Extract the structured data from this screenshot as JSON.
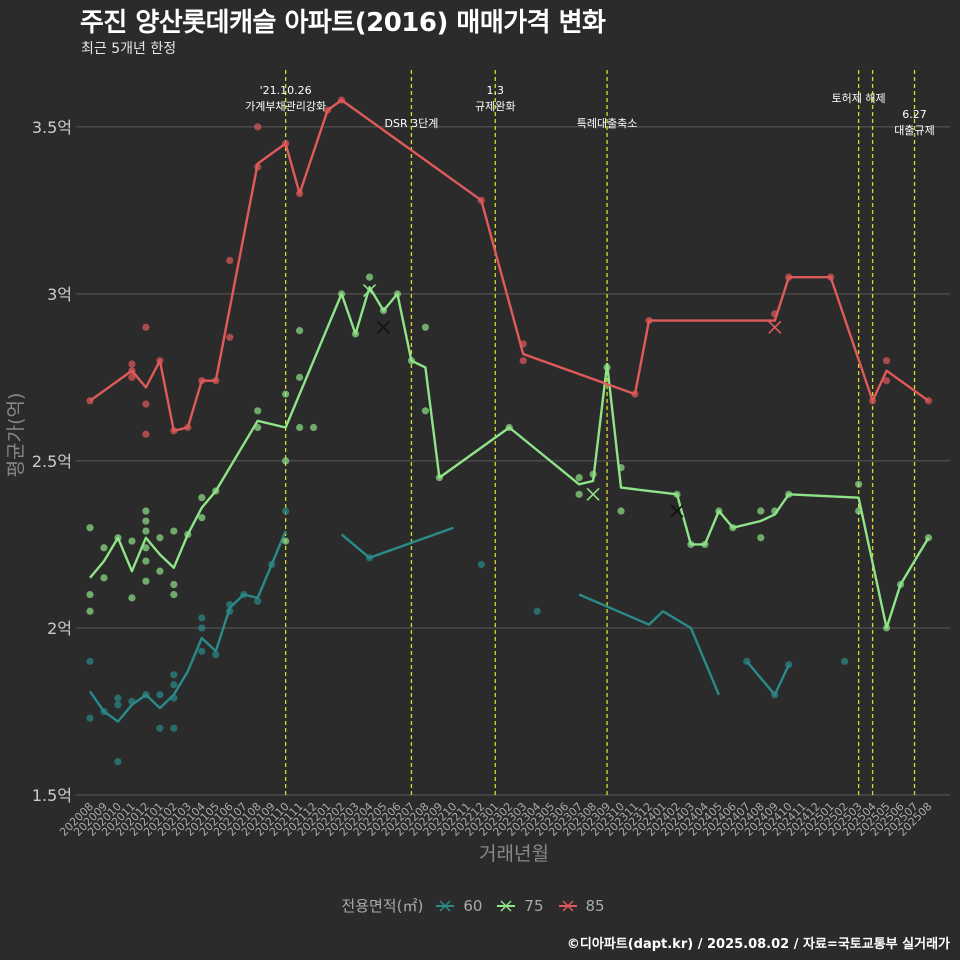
{
  "header": {
    "title": "주진 양산롯데캐슬 아파트(2016) 매매가격 변화",
    "subtitle": "최근 5개년 한정"
  },
  "footer": {
    "source": "©디아파트(dapt.kr) / 2025.08.02 / 자료=국토교통부 실거래가"
  },
  "legend": {
    "title": "전용면적(㎡)",
    "items": [
      {
        "label": "60",
        "color": "#2a8a8a"
      },
      {
        "label": "75",
        "color": "#8fe388"
      },
      {
        "label": "85",
        "color": "#e05a5a"
      }
    ]
  },
  "colors": {
    "background": "#2b2b2b",
    "grid": "#5a5a5a",
    "event_line": "#d4dc2a"
  },
  "chart_data": {
    "type": "line",
    "title": "주진 양산롯데캐슬 아파트(2016) 매매가격 변화",
    "subtitle": "최근 5개년 한정",
    "xlabel": "거래년월",
    "ylabel": "평균가(억)",
    "ylim": [
      1.5,
      3.7
    ],
    "y_ticks": [
      1.5,
      2,
      2.5,
      3,
      3.5
    ],
    "y_tick_labels": [
      "1.5억",
      "2억",
      "2.5억",
      "3억",
      "3.5억"
    ],
    "grid": true,
    "legend_position": "bottom",
    "categories": [
      "202008",
      "202009",
      "202010",
      "202011",
      "202012",
      "202101",
      "202102",
      "202103",
      "202104",
      "202105",
      "202106",
      "202107",
      "202108",
      "202109",
      "202110",
      "202111",
      "202112",
      "202201",
      "202202",
      "202203",
      "202204",
      "202205",
      "202206",
      "202207",
      "202208",
      "202209",
      "202210",
      "202211",
      "202212",
      "202301",
      "202302",
      "202303",
      "202304",
      "202305",
      "202306",
      "202307",
      "202308",
      "202309",
      "202310",
      "202311",
      "202312",
      "202401",
      "202402",
      "202403",
      "202404",
      "202405",
      "202406",
      "202407",
      "202408",
      "202409",
      "202410",
      "202411",
      "202412",
      "202501",
      "202502",
      "202503",
      "202504",
      "202505",
      "202506",
      "202507",
      "202508"
    ],
    "events": [
      {
        "x": 14.0,
        "label": "'21.10.26\n가계부채관리강화",
        "row": 0
      },
      {
        "x": 23.0,
        "label": "DSR 3단계",
        "row": 2
      },
      {
        "x": 29.0,
        "label": "1.3\n규제완화",
        "row": 0
      },
      {
        "x": 37.0,
        "label": "특례대출축소",
        "row": 2
      },
      {
        "x": 55.0,
        "label": "토허제 해제",
        "row": 1
      },
      {
        "x": 56.0,
        "label": "",
        "row": 1
      },
      {
        "x": 59.0,
        "label": "6.27\n대출규제",
        "row": 3
      }
    ],
    "series": [
      {
        "name": "60",
        "color": "#2a8a8a",
        "line": [
          [
            [
              0,
              1.81
            ],
            [
              1,
              1.75
            ],
            [
              2,
              1.72
            ],
            [
              3,
              1.77
            ],
            [
              4,
              1.8
            ],
            [
              5,
              1.76
            ],
            [
              6,
              1.8
            ],
            [
              7,
              1.87
            ],
            [
              8,
              1.97
            ],
            [
              9,
              1.93
            ],
            [
              10,
              2.06
            ],
            [
              11,
              2.1
            ],
            [
              12,
              2.09
            ],
            [
              13,
              2.19
            ],
            [
              14,
              2.29
            ]
          ],
          [
            [
              18,
              2.28
            ],
            [
              20,
              2.21
            ],
            [
              26,
              2.3
            ]
          ],
          [
            [
              35,
              2.1
            ],
            [
              40,
              2.01
            ],
            [
              41,
              2.05
            ],
            [
              43,
              2.0
            ],
            [
              45,
              1.8
            ]
          ],
          [
            [
              47,
              1.9
            ],
            [
              49,
              1.8
            ],
            [
              50,
              1.89
            ]
          ],
          [
            [
              54,
              1.9
            ]
          ]
        ],
        "points": [
          [
            0,
            1.9
          ],
          [
            0,
            1.73
          ],
          [
            1,
            1.75
          ],
          [
            2,
            1.79
          ],
          [
            2,
            1.77
          ],
          [
            2,
            1.6
          ],
          [
            3,
            1.78
          ],
          [
            4,
            1.8
          ],
          [
            5,
            1.7
          ],
          [
            5,
            1.8
          ],
          [
            6,
            1.7
          ],
          [
            6,
            1.79
          ],
          [
            6,
            1.83
          ],
          [
            6,
            1.86
          ],
          [
            8,
            1.93
          ],
          [
            8,
            2.0
          ],
          [
            8,
            2.03
          ],
          [
            9,
            1.92
          ],
          [
            10,
            2.05
          ],
          [
            10,
            2.07
          ],
          [
            11,
            2.1
          ],
          [
            12,
            2.08
          ],
          [
            13,
            2.19
          ],
          [
            14,
            2.35
          ],
          [
            20,
            2.21
          ],
          [
            28,
            2.19
          ],
          [
            32,
            2.05
          ],
          [
            47,
            1.9
          ],
          [
            49,
            1.8
          ],
          [
            50,
            1.89
          ],
          [
            54,
            1.9
          ]
        ],
        "markers": []
      },
      {
        "name": "75",
        "color": "#8fe388",
        "line": [
          [
            [
              0,
              2.15
            ],
            [
              1,
              2.2
            ],
            [
              2,
              2.27
            ],
            [
              3,
              2.17
            ],
            [
              4,
              2.27
            ],
            [
              5,
              2.22
            ],
            [
              6,
              2.18
            ],
            [
              7,
              2.28
            ],
            [
              8,
              2.36
            ],
            [
              9,
              2.41
            ],
            [
              12,
              2.62
            ],
            [
              14,
              2.6
            ],
            [
              18,
              3.0
            ],
            [
              19,
              2.88
            ],
            [
              20,
              3.02
            ],
            [
              21,
              2.95
            ],
            [
              22,
              3.0
            ],
            [
              23,
              2.8
            ],
            [
              24,
              2.78
            ],
            [
              25,
              2.45
            ],
            [
              30,
              2.6
            ],
            [
              35,
              2.43
            ],
            [
              36,
              2.44
            ],
            [
              37,
              2.79
            ],
            [
              38,
              2.42
            ],
            [
              42,
              2.4
            ],
            [
              43,
              2.25
            ],
            [
              44,
              2.25
            ],
            [
              45,
              2.35
            ],
            [
              46,
              2.3
            ],
            [
              48,
              2.32
            ],
            [
              49,
              2.34
            ],
            [
              50,
              2.4
            ],
            [
              55,
              2.39
            ],
            [
              57,
              2.0
            ],
            [
              58,
              2.13
            ],
            [
              60,
              2.27
            ]
          ]
        ],
        "points": [
          [
            0,
            2.3
          ],
          [
            0,
            2.1
          ],
          [
            0,
            2.05
          ],
          [
            1,
            2.24
          ],
          [
            1,
            2.15
          ],
          [
            2,
            2.27
          ],
          [
            3,
            2.26
          ],
          [
            3,
            2.09
          ],
          [
            4,
            2.35
          ],
          [
            4,
            2.32
          ],
          [
            4,
            2.29
          ],
          [
            4,
            2.24
          ],
          [
            4,
            2.2
          ],
          [
            4,
            2.14
          ],
          [
            5,
            2.27
          ],
          [
            5,
            2.17
          ],
          [
            6,
            2.29
          ],
          [
            6,
            2.13
          ],
          [
            6,
            2.1
          ],
          [
            7,
            2.28
          ],
          [
            8,
            2.39
          ],
          [
            8,
            2.33
          ],
          [
            9,
            2.41
          ],
          [
            12,
            2.65
          ],
          [
            12,
            2.6
          ],
          [
            14,
            2.7
          ],
          [
            14,
            2.5
          ],
          [
            14,
            2.26
          ],
          [
            15,
            2.89
          ],
          [
            15,
            2.75
          ],
          [
            15,
            2.6
          ],
          [
            16,
            2.6
          ],
          [
            18,
            3.0
          ],
          [
            19,
            2.88
          ],
          [
            20,
            3.05
          ],
          [
            21,
            2.95
          ],
          [
            22,
            3.0
          ],
          [
            23,
            2.8
          ],
          [
            24,
            2.9
          ],
          [
            24,
            2.65
          ],
          [
            25,
            2.45
          ],
          [
            30,
            2.6
          ],
          [
            35,
            2.45
          ],
          [
            35,
            2.4
          ],
          [
            36,
            2.46
          ],
          [
            37,
            2.78
          ],
          [
            38,
            2.48
          ],
          [
            38,
            2.35
          ],
          [
            42,
            2.4
          ],
          [
            43,
            2.25
          ],
          [
            44,
            2.25
          ],
          [
            45,
            2.35
          ],
          [
            46,
            2.3
          ],
          [
            48,
            2.35
          ],
          [
            48,
            2.27
          ],
          [
            49,
            2.35
          ],
          [
            50,
            2.4
          ],
          [
            55,
            2.43
          ],
          [
            55,
            2.35
          ],
          [
            57,
            2.0
          ],
          [
            58,
            2.13
          ],
          [
            60,
            2.27
          ]
        ],
        "markers": [
          [
            20,
            3.01
          ],
          [
            36,
            2.4
          ],
          [
            42,
            2.35
          ],
          [
            21,
            2.9
          ]
        ]
      },
      {
        "name": "85",
        "color": "#e05a5a",
        "line": [
          [
            [
              0,
              2.68
            ],
            [
              3,
              2.77
            ],
            [
              4,
              2.72
            ],
            [
              5,
              2.8
            ],
            [
              6,
              2.59
            ],
            [
              7,
              2.6
            ],
            [
              8,
              2.74
            ],
            [
              9,
              2.74
            ],
            [
              12,
              3.39
            ],
            [
              14,
              3.45
            ],
            [
              15,
              3.3
            ],
            [
              17,
              3.55
            ],
            [
              18,
              3.58
            ],
            [
              28,
              3.28
            ],
            [
              31,
              2.82
            ],
            [
              39,
              2.7
            ],
            [
              40,
              2.92
            ],
            [
              49,
              2.92
            ],
            [
              50,
              3.05
            ],
            [
              53,
              3.05
            ],
            [
              56,
              2.68
            ],
            [
              57,
              2.77
            ],
            [
              60,
              2.68
            ]
          ]
        ],
        "points": [
          [
            0,
            2.68
          ],
          [
            3,
            2.79
          ],
          [
            3,
            2.77
          ],
          [
            3,
            2.75
          ],
          [
            4,
            2.9
          ],
          [
            4,
            2.67
          ],
          [
            4,
            2.58
          ],
          [
            5,
            2.8
          ],
          [
            6,
            2.59
          ],
          [
            7,
            2.6
          ],
          [
            8,
            2.74
          ],
          [
            9,
            2.74
          ],
          [
            10,
            3.1
          ],
          [
            10,
            2.87
          ],
          [
            12,
            3.5
          ],
          [
            12,
            3.38
          ],
          [
            14,
            3.45
          ],
          [
            15,
            3.3
          ],
          [
            17,
            3.55
          ],
          [
            18,
            3.58
          ],
          [
            28,
            3.28
          ],
          [
            31,
            2.85
          ],
          [
            31,
            2.8
          ],
          [
            39,
            2.7
          ],
          [
            40,
            2.92
          ],
          [
            49,
            2.94
          ],
          [
            50,
            3.05
          ],
          [
            53,
            3.05
          ],
          [
            56,
            2.68
          ],
          [
            57,
            2.8
          ],
          [
            57,
            2.74
          ],
          [
            60,
            2.68
          ]
        ],
        "markers": [
          [
            49,
            2.9
          ]
        ]
      }
    ]
  }
}
